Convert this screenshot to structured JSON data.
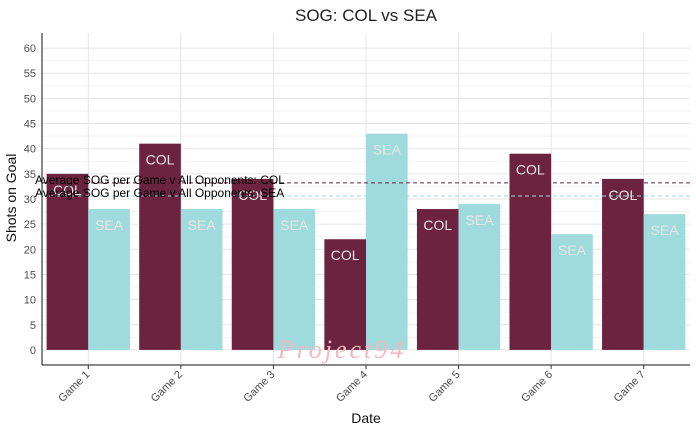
{
  "chart_data": {
    "type": "bar",
    "title": "SOG: COL vs SEA",
    "xlabel": "Date",
    "ylabel": "Shots on Goal",
    "ylim": [
      -3,
      63
    ],
    "yticks": [
      0,
      5,
      10,
      15,
      20,
      25,
      30,
      35,
      40,
      45,
      50,
      55,
      60
    ],
    "categories": [
      "Game 1",
      "Game 2",
      "Game 3",
      "Game 4",
      "Game 5",
      "Game 6",
      "Game 7"
    ],
    "series": [
      {
        "name": "COL",
        "label": "COL",
        "color": "#6b2340",
        "values": [
          35,
          41,
          34,
          22,
          28,
          39,
          34
        ]
      },
      {
        "name": "SEA",
        "label": "SEA",
        "color": "#9fdbdc",
        "values": [
          28,
          28,
          28,
          43,
          29,
          23,
          27
        ]
      }
    ],
    "reference_lines": [
      {
        "label": "Average SOG per Game v All Opponents: COL",
        "value": 33.2,
        "color": "#6b2340"
      },
      {
        "label": "Average SOG per Game v All Opponents: SEA",
        "value": 30.6,
        "color": "#9fdbdc"
      }
    ],
    "watermark": "Project94"
  }
}
